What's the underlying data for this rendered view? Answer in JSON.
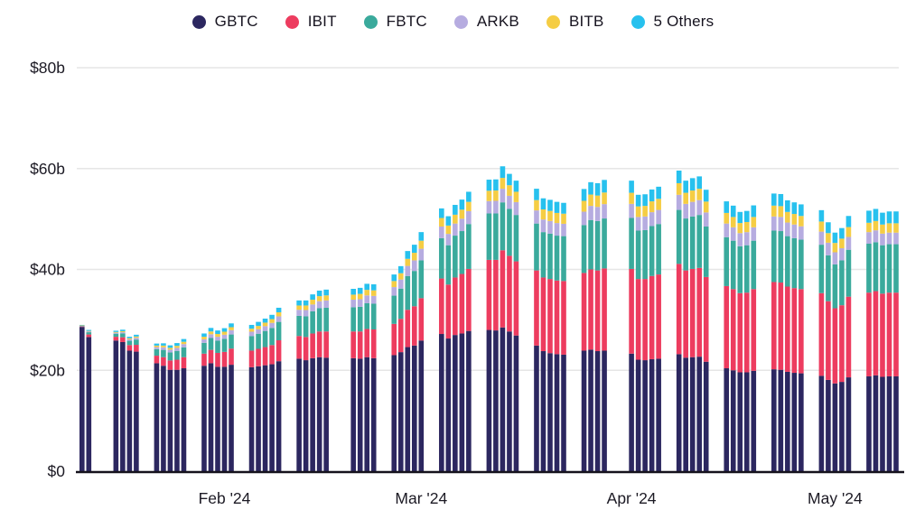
{
  "chart_data": {
    "type": "bar",
    "stacked": true,
    "title": "",
    "unit": "billions of USD",
    "series_names": [
      "GBTC",
      "IBIT",
      "FBTC",
      "ARKB",
      "BITB",
      "5 Others"
    ],
    "colors": [
      "#2c2760",
      "#ed3c5f",
      "#3aaa9c",
      "#b6ace0",
      "#f5cd44",
      "#27c1ee"
    ],
    "style": {
      "grid_color": "#e6e6e6",
      "axis_color": "#15121c",
      "text_color": "#1c1a24",
      "background": "#ffffff"
    },
    "ylim": [
      0,
      80
    ],
    "grid": true,
    "legend_position": "top-center",
    "y_ticks": [
      {
        "label": "$0",
        "value": 0
      },
      {
        "label": "$20b",
        "value": 20
      },
      {
        "label": "$40b",
        "value": 40
      },
      {
        "label": "$60b",
        "value": 60
      },
      {
        "label": "$80b",
        "value": 80
      }
    ],
    "x_ticks": [
      {
        "label": "Feb '24",
        "date": "2024-02-01"
      },
      {
        "label": "Mar '24",
        "date": "2024-03-01"
      },
      {
        "label": "Apr '24",
        "date": "2024-04-01"
      },
      {
        "label": "May '24",
        "date": "2024-05-01"
      }
    ],
    "bars": [
      {
        "date": "2024-01-11",
        "values": [
          28.6,
          0.1,
          0.1,
          0.05,
          0.05,
          0.1
        ]
      },
      {
        "date": "2024-01-12",
        "values": [
          26.6,
          0.5,
          0.45,
          0.15,
          0.1,
          0.2
        ]
      },
      {
        "date": "2024-01-16",
        "values": [
          25.9,
          0.75,
          0.6,
          0.2,
          0.15,
          0.25
        ]
      },
      {
        "date": "2024-01-17",
        "values": [
          25.6,
          0.95,
          0.75,
          0.25,
          0.2,
          0.3
        ]
      },
      {
        "date": "2024-01-18",
        "values": [
          23.9,
          1.1,
          0.85,
          0.3,
          0.2,
          0.3
        ]
      },
      {
        "date": "2024-01-19",
        "values": [
          23.7,
          1.35,
          1.05,
          0.35,
          0.25,
          0.35
        ]
      },
      {
        "date": "2024-01-22",
        "values": [
          21.4,
          1.5,
          1.3,
          0.4,
          0.3,
          0.4
        ]
      },
      {
        "date": "2024-01-23",
        "values": [
          20.9,
          1.7,
          1.45,
          0.5,
          0.35,
          0.45
        ]
      },
      {
        "date": "2024-01-24",
        "values": [
          20.1,
          1.85,
          1.6,
          0.55,
          0.35,
          0.5
        ]
      },
      {
        "date": "2024-01-25",
        "values": [
          20.1,
          2.0,
          1.75,
          0.6,
          0.4,
          0.55
        ]
      },
      {
        "date": "2024-01-26",
        "values": [
          20.4,
          2.2,
          1.95,
          0.65,
          0.45,
          0.55
        ]
      },
      {
        "date": "2024-01-29",
        "values": [
          20.9,
          2.4,
          2.15,
          0.7,
          0.5,
          0.65
        ]
      },
      {
        "date": "2024-01-30",
        "values": [
          21.4,
          2.65,
          2.35,
          0.75,
          0.55,
          0.7
        ]
      },
      {
        "date": "2024-01-31",
        "values": [
          20.7,
          2.75,
          2.45,
          0.75,
          0.55,
          0.7
        ]
      },
      {
        "date": "2024-02-01",
        "values": [
          20.7,
          2.95,
          2.6,
          0.8,
          0.6,
          0.7
        ]
      },
      {
        "date": "2024-02-02",
        "values": [
          21.1,
          3.2,
          2.8,
          0.85,
          0.6,
          0.75
        ]
      },
      {
        "date": "2024-02-05",
        "values": [
          20.6,
          3.3,
          2.9,
          0.85,
          0.6,
          0.75
        ]
      },
      {
        "date": "2024-02-06",
        "values": [
          20.8,
          3.45,
          3.0,
          0.9,
          0.65,
          0.8
        ]
      },
      {
        "date": "2024-02-07",
        "values": [
          21.0,
          3.6,
          3.2,
          0.95,
          0.7,
          0.8
        ]
      },
      {
        "date": "2024-02-08",
        "values": [
          21.2,
          3.8,
          3.4,
          1.0,
          0.75,
          0.85
        ]
      },
      {
        "date": "2024-02-09",
        "values": [
          21.8,
          4.15,
          3.65,
          1.1,
          0.8,
          0.9
        ]
      },
      {
        "date": "2024-02-12",
        "values": [
          22.3,
          4.5,
          4.0,
          1.2,
          0.85,
          1.0
        ]
      },
      {
        "date": "2024-02-13",
        "values": [
          22.0,
          4.6,
          4.1,
          1.25,
          0.9,
          1.0
        ]
      },
      {
        "date": "2024-02-14",
        "values": [
          22.4,
          4.9,
          4.4,
          1.35,
          0.95,
          1.05
        ]
      },
      {
        "date": "2024-02-15",
        "values": [
          22.6,
          5.1,
          4.6,
          1.4,
          1.0,
          1.1
        ]
      },
      {
        "date": "2024-02-16",
        "values": [
          22.5,
          5.2,
          4.7,
          1.45,
          1.0,
          1.15
        ]
      },
      {
        "date": "2024-02-20",
        "values": [
          22.4,
          5.3,
          4.8,
          1.5,
          1.0,
          1.15
        ]
      },
      {
        "date": "2024-02-21",
        "values": [
          22.3,
          5.4,
          4.9,
          1.5,
          1.05,
          1.2
        ]
      },
      {
        "date": "2024-02-22",
        "values": [
          22.6,
          5.6,
          5.1,
          1.55,
          1.1,
          1.2
        ]
      },
      {
        "date": "2024-02-23",
        "values": [
          22.4,
          5.7,
          5.1,
          1.55,
          1.1,
          1.2
        ]
      },
      {
        "date": "2024-02-26",
        "values": [
          23.0,
          6.2,
          5.6,
          1.7,
          1.2,
          1.3
        ]
      },
      {
        "date": "2024-02-27",
        "values": [
          23.6,
          6.6,
          6.0,
          1.8,
          1.25,
          1.4
        ]
      },
      {
        "date": "2024-02-28",
        "values": [
          24.6,
          7.4,
          6.7,
          2.0,
          1.4,
          1.55
        ]
      },
      {
        "date": "2024-02-29",
        "values": [
          24.9,
          7.8,
          7.0,
          2.1,
          1.5,
          1.6
        ]
      },
      {
        "date": "2024-03-01",
        "values": [
          25.9,
          8.4,
          7.5,
          2.3,
          1.6,
          1.7
        ]
      },
      {
        "date": "2024-03-04",
        "values": [
          27.2,
          11.0,
          8.0,
          2.3,
          1.7,
          1.9
        ]
      },
      {
        "date": "2024-03-05",
        "values": [
          26.3,
          10.7,
          7.8,
          2.25,
          1.65,
          1.85
        ]
      },
      {
        "date": "2024-03-06",
        "values": [
          27.0,
          11.4,
          8.3,
          2.4,
          1.75,
          1.95
        ]
      },
      {
        "date": "2024-03-07",
        "values": [
          27.3,
          11.8,
          8.5,
          2.45,
          1.8,
          2.0
        ]
      },
      {
        "date": "2024-03-08",
        "values": [
          27.8,
          12.3,
          8.9,
          2.55,
          1.85,
          2.0
        ]
      },
      {
        "date": "2024-03-11",
        "values": [
          28.0,
          13.9,
          9.2,
          2.45,
          2.05,
          2.2
        ]
      },
      {
        "date": "2024-03-12",
        "values": [
          27.9,
          14.0,
          9.2,
          2.5,
          2.05,
          2.2
        ]
      },
      {
        "date": "2024-03-13",
        "values": [
          28.5,
          15.3,
          9.5,
          2.7,
          2.15,
          2.3
        ]
      },
      {
        "date": "2024-03-14",
        "values": [
          27.7,
          15.0,
          9.3,
          2.6,
          2.1,
          2.25
        ]
      },
      {
        "date": "2024-03-15",
        "values": [
          26.9,
          14.7,
          9.2,
          2.55,
          2.05,
          2.2
        ]
      },
      {
        "date": "2024-03-18",
        "values": [
          24.9,
          14.9,
          9.3,
          2.6,
          2.05,
          2.25
        ]
      },
      {
        "date": "2024-03-19",
        "values": [
          23.8,
          14.6,
          9.0,
          2.5,
          2.0,
          2.2
        ]
      },
      {
        "date": "2024-03-20",
        "values": [
          23.4,
          14.7,
          9.0,
          2.5,
          2.0,
          2.2
        ]
      },
      {
        "date": "2024-03-21",
        "values": [
          23.2,
          14.6,
          8.9,
          2.5,
          2.0,
          2.2
        ]
      },
      {
        "date": "2024-03-22",
        "values": [
          23.1,
          14.6,
          8.9,
          2.45,
          2.0,
          2.15
        ]
      },
      {
        "date": "2024-03-25",
        "values": [
          23.9,
          15.4,
          9.5,
          2.65,
          2.15,
          2.35
        ]
      },
      {
        "date": "2024-03-26",
        "values": [
          24.1,
          15.9,
          9.8,
          2.8,
          2.25,
          2.45
        ]
      },
      {
        "date": "2024-03-27",
        "values": [
          23.8,
          16.0,
          9.8,
          2.8,
          2.25,
          2.45
        ]
      },
      {
        "date": "2024-03-28",
        "values": [
          23.9,
          16.3,
          9.9,
          2.85,
          2.3,
          2.5
        ]
      },
      {
        "date": "2024-04-01",
        "values": [
          23.3,
          16.8,
          10.1,
          2.8,
          2.2,
          2.4
        ]
      },
      {
        "date": "2024-04-02",
        "values": [
          22.1,
          16.0,
          9.6,
          2.7,
          2.1,
          2.3
        ]
      },
      {
        "date": "2024-04-03",
        "values": [
          22.0,
          16.1,
          9.7,
          2.7,
          2.1,
          2.3
        ]
      },
      {
        "date": "2024-04-04",
        "values": [
          22.2,
          16.5,
          9.9,
          2.75,
          2.15,
          2.35
        ]
      },
      {
        "date": "2024-04-05",
        "values": [
          22.3,
          16.7,
          10.0,
          2.8,
          2.2,
          2.4
        ]
      },
      {
        "date": "2024-04-08",
        "values": [
          23.2,
          17.9,
          10.7,
          3.0,
          2.3,
          2.5
        ]
      },
      {
        "date": "2024-04-09",
        "values": [
          22.5,
          17.3,
          10.3,
          2.9,
          2.2,
          2.4
        ]
      },
      {
        "date": "2024-04-10",
        "values": [
          22.6,
          17.5,
          10.4,
          2.9,
          2.25,
          2.45
        ]
      },
      {
        "date": "2024-04-11",
        "values": [
          22.7,
          17.6,
          10.5,
          2.95,
          2.25,
          2.45
        ]
      },
      {
        "date": "2024-04-12",
        "values": [
          21.7,
          16.8,
          10.0,
          2.8,
          2.15,
          2.35
        ]
      },
      {
        "date": "2024-04-15",
        "values": [
          20.4,
          16.3,
          9.7,
          2.7,
          2.1,
          2.3
        ]
      },
      {
        "date": "2024-04-16",
        "values": [
          20.0,
          16.1,
          9.6,
          2.65,
          2.05,
          2.25
        ]
      },
      {
        "date": "2024-04-17",
        "values": [
          19.6,
          15.7,
          9.3,
          2.6,
          2.0,
          2.2
        ]
      },
      {
        "date": "2024-04-18",
        "values": [
          19.6,
          15.8,
          9.4,
          2.6,
          2.0,
          2.2
        ]
      },
      {
        "date": "2024-04-19",
        "values": [
          19.9,
          16.2,
          9.6,
          2.65,
          2.05,
          2.3
        ]
      },
      {
        "date": "2024-04-22",
        "values": [
          20.2,
          17.3,
          10.2,
          2.8,
          2.15,
          2.4
        ]
      },
      {
        "date": "2024-04-23",
        "values": [
          20.1,
          17.3,
          10.2,
          2.8,
          2.15,
          2.4
        ]
      },
      {
        "date": "2024-04-24",
        "values": [
          19.7,
          16.9,
          10.0,
          2.7,
          2.1,
          2.3
        ]
      },
      {
        "date": "2024-04-25",
        "values": [
          19.5,
          16.8,
          9.9,
          2.7,
          2.1,
          2.3
        ]
      },
      {
        "date": "2024-04-26",
        "values": [
          19.4,
          16.7,
          9.8,
          2.65,
          2.05,
          2.3
        ]
      },
      {
        "date": "2024-04-29",
        "values": [
          18.9,
          16.4,
          9.6,
          2.6,
          2.0,
          2.25
        ]
      },
      {
        "date": "2024-04-30",
        "values": [
          18.1,
          15.6,
          9.1,
          2.5,
          1.9,
          2.15
        ]
      },
      {
        "date": "2024-05-01",
        "values": [
          17.4,
          14.9,
          8.7,
          2.4,
          1.85,
          2.05
        ]
      },
      {
        "date": "2024-05-02",
        "values": [
          17.7,
          15.2,
          8.9,
          2.4,
          1.9,
          2.1
        ]
      },
      {
        "date": "2024-05-03",
        "values": [
          18.6,
          16.0,
          9.3,
          2.55,
          1.95,
          2.2
        ]
      },
      {
        "date": "2024-05-06",
        "values": [
          18.8,
          16.6,
          9.7,
          2.3,
          1.85,
          2.4
        ]
      },
      {
        "date": "2024-05-07",
        "values": [
          19.0,
          16.7,
          9.7,
          2.35,
          1.85,
          2.4
        ]
      },
      {
        "date": "2024-05-08",
        "values": [
          18.7,
          16.5,
          9.6,
          2.3,
          1.8,
          2.35
        ]
      },
      {
        "date": "2024-05-09",
        "values": [
          18.8,
          16.6,
          9.6,
          2.3,
          1.85,
          2.35
        ]
      },
      {
        "date": "2024-05-10",
        "values": [
          18.8,
          16.6,
          9.6,
          2.3,
          1.85,
          2.35
        ]
      }
    ]
  }
}
